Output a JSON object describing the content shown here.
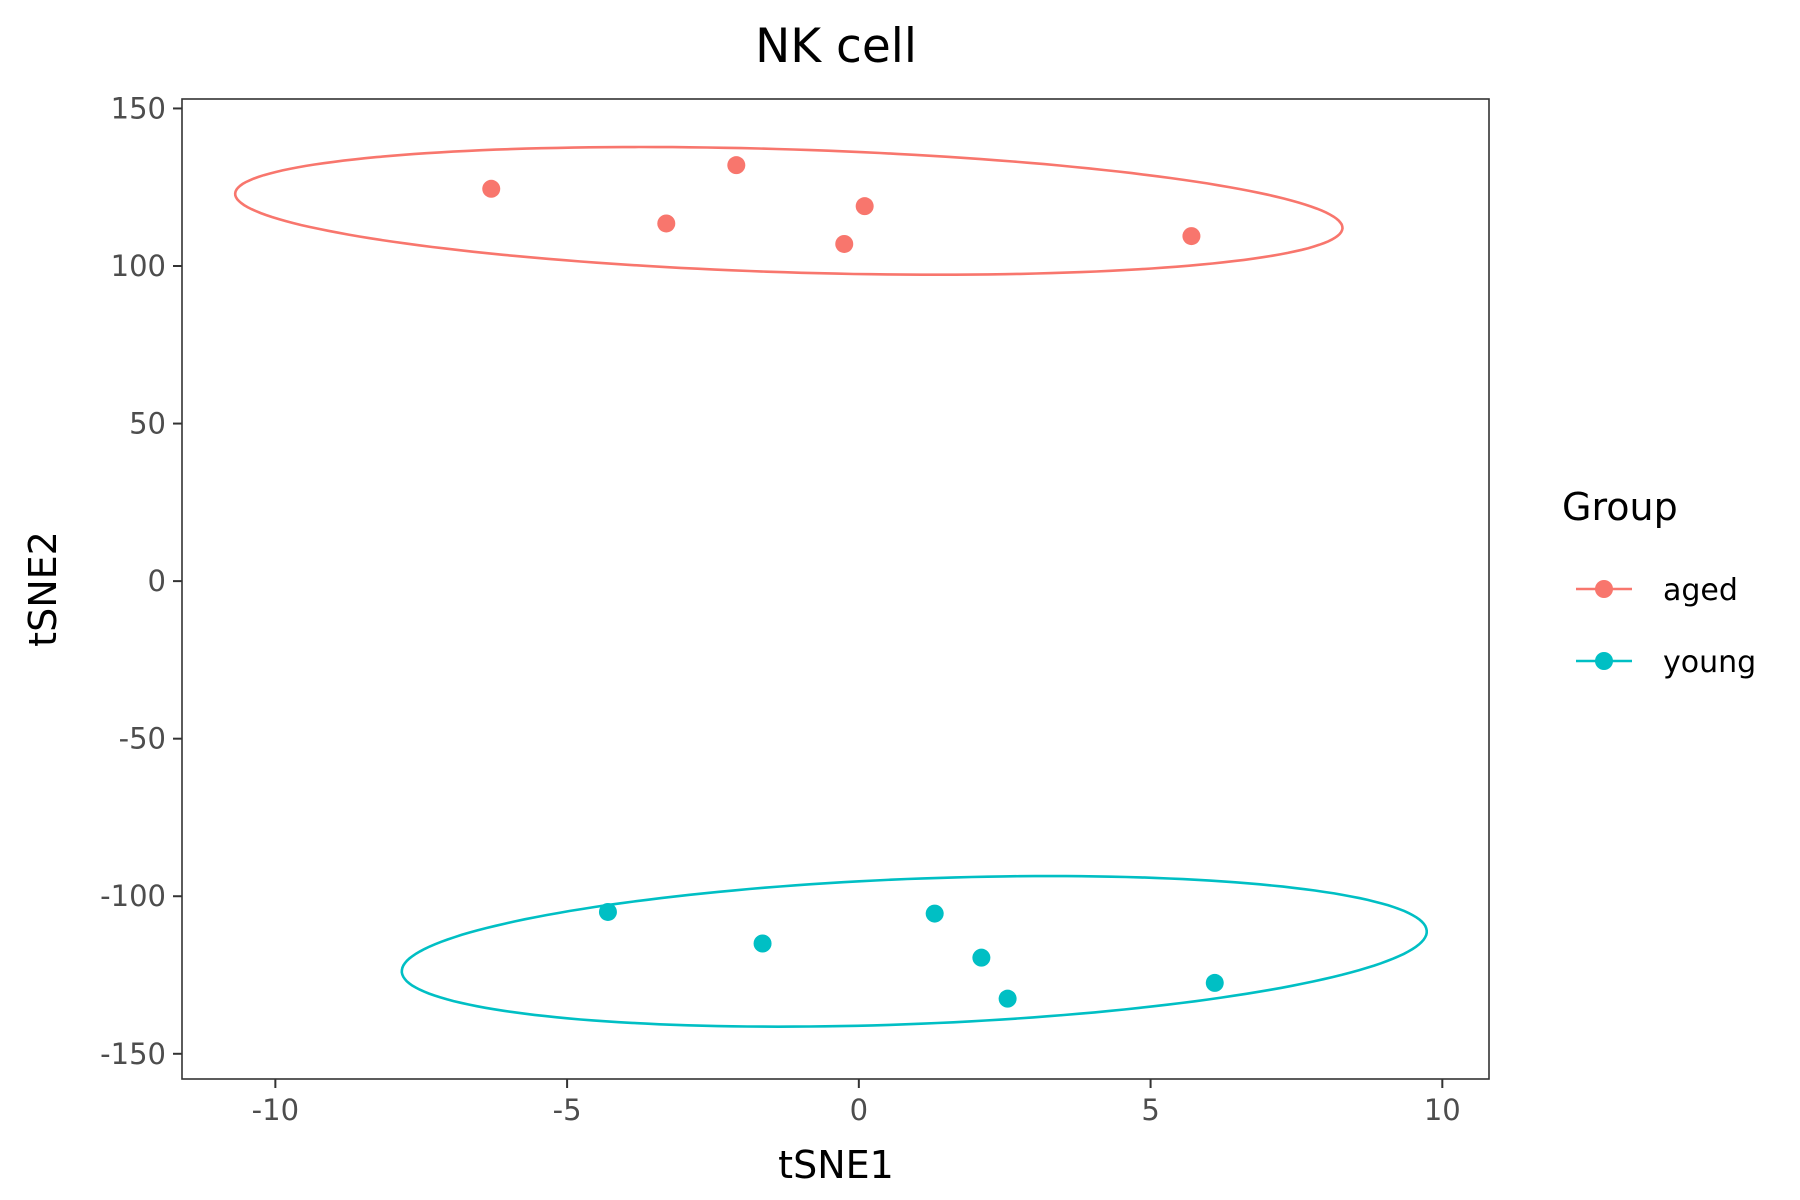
{
  "chart_data": {
    "type": "scatter",
    "title": "NK cell",
    "xlabel": "tSNE1",
    "ylabel": "tSNE2",
    "xlim": [
      -11.6,
      10.8
    ],
    "ylim": [
      -158,
      153
    ],
    "x_ticks": [
      -10,
      -5,
      0,
      5,
      10
    ],
    "x_tick_labels": [
      "-10",
      "-5",
      "0",
      "5",
      "10"
    ],
    "y_ticks": [
      150,
      100,
      50,
      0,
      -50,
      -100,
      -150
    ],
    "y_tick_labels": [
      "150",
      "100",
      "50",
      "0",
      "-50",
      "-100",
      "-150"
    ],
    "grid": false,
    "legend": {
      "title": "Group",
      "placement": "right"
    },
    "series": [
      {
        "name": "aged",
        "color": "#F8766D",
        "points": [
          {
            "x": -6.3,
            "y": 124.5
          },
          {
            "x": -3.3,
            "y": 113.5
          },
          {
            "x": -2.1,
            "y": 132.0
          },
          {
            "x": 0.1,
            "y": 119.0
          },
          {
            "x": -0.25,
            "y": 107.0
          },
          {
            "x": 5.7,
            "y": 109.5
          }
        ],
        "ellipse": {
          "cx": -1.2,
          "cy": 117.5,
          "rx": 9.5,
          "ry": 19.5,
          "rotate": -2.8
        }
      },
      {
        "name": "young",
        "color": "#00BFC4",
        "points": [
          {
            "x": -4.3,
            "y": -105.0
          },
          {
            "x": -1.65,
            "y": -115.0
          },
          {
            "x": 1.3,
            "y": -105.5
          },
          {
            "x": 2.1,
            "y": -119.5
          },
          {
            "x": 2.55,
            "y": -132.5
          },
          {
            "x": 6.1,
            "y": -127.5
          }
        ],
        "ellipse": {
          "cx": 0.95,
          "cy": -117.5,
          "rx": 8.8,
          "ry": 23.0,
          "rotate": 3.6
        }
      }
    ]
  }
}
